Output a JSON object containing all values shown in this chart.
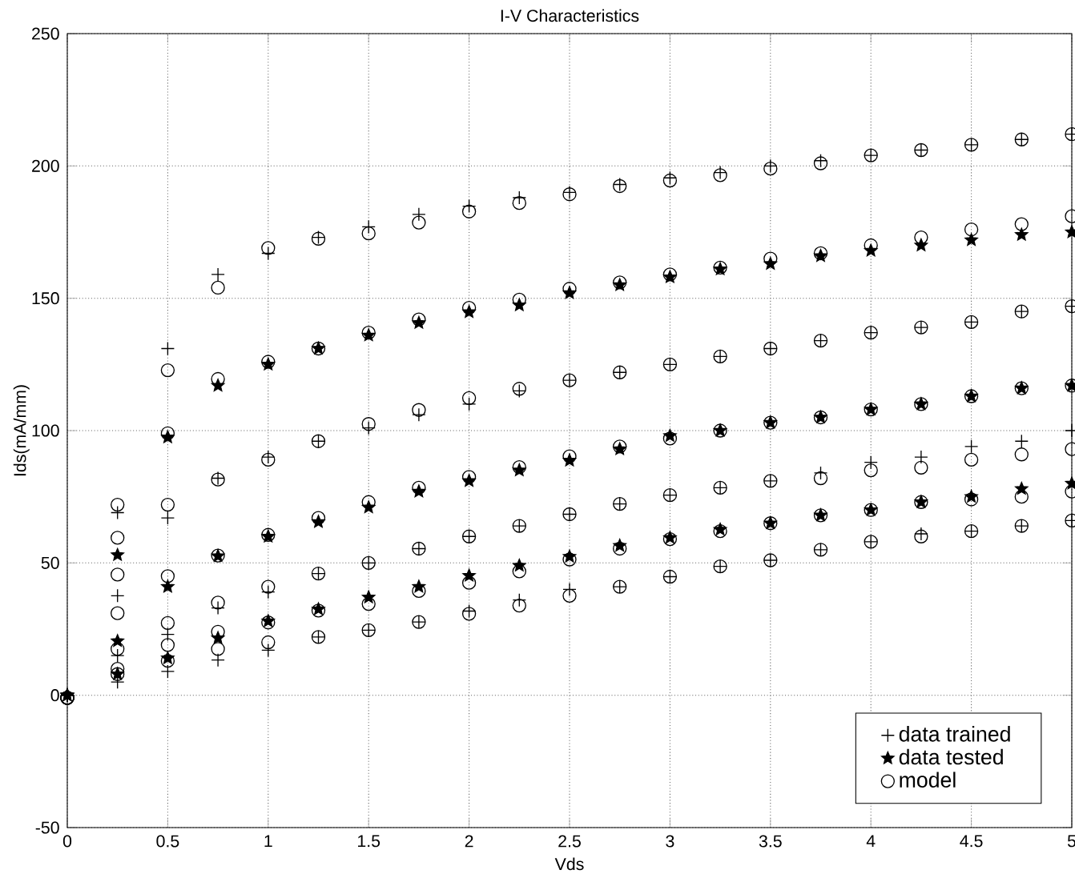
{
  "chart_data": {
    "type": "scatter",
    "title": "I-V Characteristics",
    "xlabel": "Vds",
    "ylabel": "Ids(mA/mm)",
    "xlim": [
      0,
      5
    ],
    "ylim": [
      -50,
      250
    ],
    "xticks": [
      0,
      0.5,
      1,
      1.5,
      2,
      2.5,
      3,
      3.5,
      4,
      4.5,
      5
    ],
    "yticks": [
      -50,
      0,
      50,
      100,
      150,
      200,
      250
    ],
    "grid": true,
    "legend": "bottom right",
    "series": [
      {
        "name": "data trained",
        "color": "#000000",
        "marker": "cross",
        "x": [
          0,
          0.25,
          0.5,
          0.75,
          1,
          1.25,
          1.5,
          1.75,
          2,
          2.25,
          2.5,
          2.75,
          3,
          3.25,
          3.5,
          3.75,
          4,
          4.25,
          4.5,
          4.75,
          5,
          0,
          0.25,
          0.5,
          0.75,
          1,
          1.25,
          1.5,
          1.75,
          2,
          2.25,
          2.5,
          2.75,
          3,
          3.25,
          3.5,
          3.75,
          4,
          4.25,
          4.5,
          4.75,
          5,
          0,
          0.25,
          0.5,
          0.75,
          1,
          1.25,
          1.5,
          1.75,
          2,
          2.25,
          2.5,
          2.75,
          3,
          3.25,
          3.5,
          3.75,
          4,
          4.25,
          4.5,
          4.75,
          5,
          0,
          0.25,
          0.5,
          0.75,
          1,
          1.25,
          1.5,
          1.75,
          2,
          2.25,
          2.5,
          2.75,
          3,
          3.25,
          3.5,
          3.75,
          4,
          4.25,
          4.5,
          4.75,
          5
        ],
        "values": [
          0,
          69,
          131,
          159,
          167,
          173,
          177,
          181.7,
          184.8,
          188,
          190,
          193,
          195.5,
          197.5,
          200,
          202,
          204,
          206,
          208,
          210,
          212,
          0,
          37.6,
          67,
          82,
          90,
          96,
          101,
          106,
          110,
          115,
          119,
          122,
          125,
          128,
          131,
          134,
          137,
          139,
          141,
          145,
          147,
          0,
          15,
          23,
          33,
          39,
          46,
          50,
          55.4,
          60,
          64,
          68.4,
          72.3,
          75.6,
          78.4,
          81,
          84,
          88,
          90,
          94,
          96,
          100,
          0,
          5,
          9,
          13.3,
          17,
          22,
          24.6,
          27.7,
          31.8,
          36,
          40,
          41,
          44.8,
          48.7,
          51,
          55,
          58,
          61,
          62,
          64,
          66
        ]
      },
      {
        "name": "data tested",
        "color": "#000000",
        "marker": "star",
        "x": [
          0,
          0.25,
          0.5,
          0.75,
          1,
          1.25,
          1.5,
          1.75,
          2,
          2.25,
          2.5,
          2.75,
          3,
          3.25,
          3.5,
          3.75,
          4,
          4.25,
          4.5,
          4.75,
          5,
          0,
          0.25,
          0.5,
          0.75,
          1,
          1.25,
          1.5,
          1.75,
          2,
          2.25,
          2.5,
          2.75,
          3,
          3.25,
          3.5,
          3.75,
          4,
          4.25,
          4.5,
          4.75,
          5,
          0,
          0.25,
          0.5,
          0.75,
          1,
          1.25,
          1.5,
          1.75,
          2,
          2.25,
          2.5,
          2.75,
          3,
          3.25,
          3.5,
          3.75,
          4,
          4.25,
          4.5,
          4.75,
          5
        ],
        "values": [
          0,
          53,
          97.5,
          117,
          125,
          131,
          136,
          140.7,
          144.8,
          147.4,
          152,
          155,
          158,
          161,
          163,
          166,
          168,
          170,
          172,
          174,
          175,
          0,
          20.5,
          41,
          52.6,
          60,
          65.5,
          71,
          77,
          81,
          85,
          88.7,
          93,
          98,
          100,
          103,
          105,
          108,
          110,
          113,
          116,
          117,
          0,
          8,
          14,
          21.6,
          28,
          32.5,
          37,
          41,
          45.2,
          49,
          52.4,
          56.5,
          59.5,
          62.6,
          65,
          68,
          70,
          73,
          75,
          78,
          80
        ]
      },
      {
        "name": "model",
        "color": "#000000",
        "marker": "circle",
        "x": [
          0,
          0.25,
          0.5,
          0.75,
          1,
          1.25,
          1.5,
          1.75,
          2,
          2.25,
          2.5,
          2.75,
          3,
          3.25,
          3.5,
          3.75,
          4,
          4.25,
          4.5,
          4.75,
          5,
          0,
          0.25,
          0.5,
          0.75,
          1,
          1.25,
          1.5,
          1.75,
          2,
          2.25,
          2.5,
          2.75,
          3,
          3.25,
          3.5,
          3.75,
          4,
          4.25,
          4.5,
          4.75,
          5,
          0,
          0.25,
          0.5,
          0.75,
          1,
          1.25,
          1.5,
          1.75,
          2,
          2.25,
          2.5,
          2.75,
          3,
          3.25,
          3.5,
          3.75,
          4,
          4.25,
          4.5,
          4.75,
          5,
          0,
          0.25,
          0.5,
          0.75,
          1,
          1.25,
          1.5,
          1.75,
          2,
          2.25,
          2.5,
          2.75,
          3,
          3.25,
          3.5,
          3.75,
          4,
          4.25,
          4.5,
          4.75,
          5,
          0,
          0.25,
          0.5,
          0.75,
          1,
          1.25,
          1.5,
          1.75,
          2,
          2.25,
          2.5,
          2.75,
          3,
          3.25,
          3.5,
          3.75,
          4,
          4.25,
          4.5,
          4.75,
          5,
          0,
          0.25,
          0.5,
          0.75,
          1,
          1.25,
          1.5,
          1.75,
          2,
          2.25,
          2.5,
          2.75,
          3,
          3.25,
          3.5,
          3.75,
          4,
          4.25,
          4.5,
          4.75,
          5,
          0,
          0.25,
          0.5,
          0.75,
          1,
          1.25,
          1.5,
          1.75,
          2,
          2.25,
          2.5,
          2.75,
          3,
          3.25,
          3.5,
          3.75,
          4,
          4.25,
          4.5,
          4.75,
          5
        ],
        "values": [
          -1,
          72,
          122.8,
          154,
          169,
          172.5,
          174.5,
          178.6,
          182.8,
          186,
          189.3,
          192.4,
          194.5,
          196.5,
          199,
          201,
          204,
          206,
          208,
          210,
          212,
          -1,
          59.5,
          99,
          119.5,
          126,
          131,
          137,
          142,
          146.4,
          149.5,
          153.6,
          156,
          159,
          161.6,
          165,
          167,
          170,
          173,
          176,
          178,
          181,
          -1,
          45.6,
          72,
          81.5,
          89,
          96,
          102.5,
          107.8,
          112.3,
          115.8,
          119,
          122,
          125,
          128,
          131,
          134,
          137,
          139,
          141,
          145,
          147,
          -1,
          31,
          45,
          52.8,
          60.6,
          67,
          73,
          78.4,
          82.5,
          86.2,
          90.3,
          94,
          97,
          100,
          103,
          105,
          108,
          110,
          113,
          116,
          117,
          -1,
          17.5,
          27.3,
          35,
          41,
          46,
          50,
          55.4,
          60,
          64,
          68.4,
          72.3,
          75.6,
          78.4,
          81,
          82,
          85,
          86,
          89,
          91,
          93,
          -1,
          10,
          19,
          24,
          27.5,
          32,
          34.5,
          39.4,
          42.5,
          46.8,
          51.3,
          55.4,
          59,
          62,
          65,
          68,
          70,
          73,
          74,
          75,
          77,
          -1,
          8,
          13,
          17.5,
          20,
          22,
          24.6,
          27.7,
          30.8,
          33.9,
          37.6,
          41,
          44.8,
          48.7,
          51,
          55,
          58,
          60,
          62,
          64,
          66
        ]
      }
    ]
  }
}
